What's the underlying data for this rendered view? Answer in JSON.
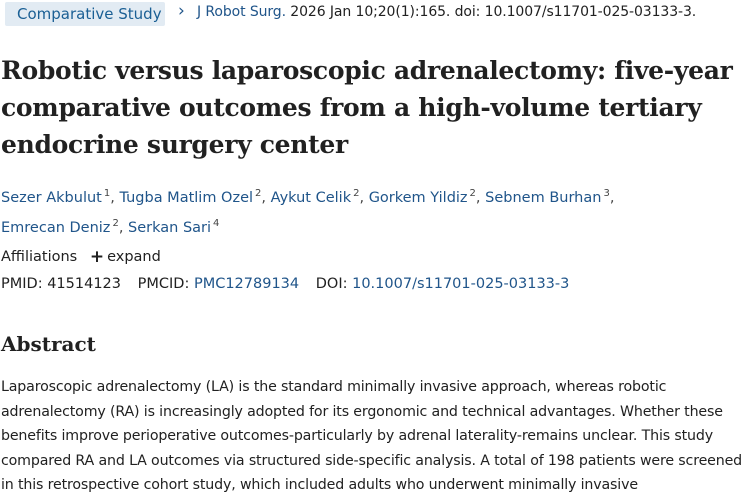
{
  "header": {
    "article_type": "Comparative Study",
    "chevron": "›",
    "journal": "J Robot Surg.",
    "citation": " 2026 Jan 10;20(1):165. doi: 10.1007/s11701-025-03133-3."
  },
  "title": "Robotic versus laparoscopic adrenalectomy: five-year comparative outcomes from a high-volume tertiary endocrine surgery center",
  "authors": [
    {
      "name": "Sezer Akbulut",
      "sup": "1"
    },
    {
      "name": "Tugba Matlim Ozel",
      "sup": "2"
    },
    {
      "name": "Aykut Celik",
      "sup": "2"
    },
    {
      "name": "Gorkem Yildiz",
      "sup": "2"
    },
    {
      "name": "Sebnem Burhan",
      "sup": "3"
    },
    {
      "name": "Emrecan Deniz",
      "sup": "2"
    },
    {
      "name": "Serkan Sari",
      "sup": "4"
    }
  ],
  "author_separator": ",",
  "affiliations": {
    "label": "Affiliations",
    "expand_icon": "+",
    "expand_label": "expand"
  },
  "identifiers": {
    "pmid_label": "PMID:",
    "pmid": "41514123",
    "pmcid_label": "PMCID:",
    "pmcid": "PMC12789134",
    "doi_label": "DOI:",
    "doi": "10.1007/s11701-025-03133-3"
  },
  "abstract": {
    "heading": "Abstract",
    "text": "Laparoscopic adrenalectomy (LA) is the standard minimally invasive approach, whereas robotic adrenalectomy (RA) is increasingly adopted for its ergonomic and technical advantages. Whether these benefits improve perioperative outcomes-particularly by adrenal laterality-remains unclear. This study compared RA and LA outcomes via structured side-specific analysis. A total of 198 patients were screened in this retrospective cohort study, which included adults who underwent minimally invasive"
  },
  "colors": {
    "link": "#20558a",
    "badge_bg": "#e2ebf3",
    "badge_text": "#1a5f94",
    "text": "#212121"
  }
}
